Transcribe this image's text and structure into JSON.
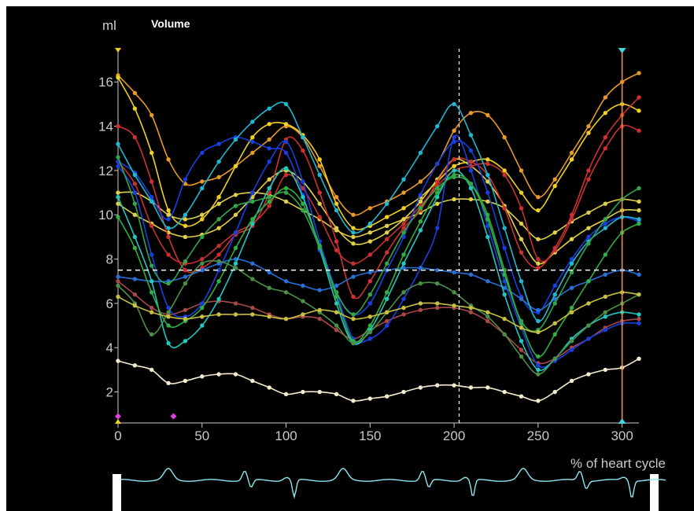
{
  "panel": {
    "unit_label": "ml",
    "title": "Volume",
    "x_axis_label": "% of heart cycle"
  },
  "colors": {
    "background": "#000000",
    "axis": "#cccccc",
    "crosshair": "#ffffff",
    "cursor_line": "#e8904a",
    "cursor_marker": "#40d8e8",
    "start_marker": "#f0d020",
    "event_marker": "#e040e0",
    "ecg": "#8ee6f2"
  },
  "chart_data": {
    "type": "line",
    "title": "Volume",
    "xlabel": "% of heart cycle",
    "ylabel": "ml",
    "xlim": [
      0,
      310
    ],
    "ylim": [
      0.6,
      17.5
    ],
    "x_ticks": [
      0,
      50,
      100,
      150,
      200,
      250,
      300
    ],
    "y_ticks": [
      2,
      4,
      6,
      8,
      10,
      12,
      14,
      16
    ],
    "grid": false,
    "crosshair": {
      "x": 203,
      "y": 7.5
    },
    "cursor_x": 300,
    "event_markers": [
      {
        "x": 0,
        "y": 0.9
      },
      {
        "x": 33,
        "y": 0.9
      }
    ],
    "series": [
      {
        "color": "#e89a28",
        "x": [
          0,
          10,
          20,
          30,
          40,
          50,
          60,
          70,
          80,
          90,
          100,
          110,
          120,
          130,
          140,
          150,
          160,
          170,
          180,
          190,
          200,
          210,
          220,
          230,
          240,
          250,
          260,
          270,
          280,
          290,
          300,
          310
        ],
        "values": [
          16.3,
          15.5,
          14.5,
          12.5,
          11.4,
          11.5,
          11.7,
          12.2,
          12.8,
          13.4,
          14.0,
          13.5,
          12.2,
          10.8,
          10.0,
          10.3,
          10.6,
          11.0,
          11.5,
          12.3,
          13.8,
          14.6,
          14.5,
          13.5,
          12.0,
          10.8,
          11.6,
          12.8,
          14.0,
          15.3,
          16.0,
          16.4
        ]
      },
      {
        "color": "#f0d020",
        "x": [
          0,
          10,
          20,
          30,
          40,
          50,
          60,
          70,
          80,
          90,
          100,
          110,
          120,
          130,
          140,
          150,
          160,
          170,
          180,
          190,
          200,
          210,
          220,
          230,
          240,
          250,
          260,
          270,
          280,
          290,
          300,
          310
        ],
        "values": [
          16.2,
          14.8,
          12.8,
          10.2,
          9.5,
          9.8,
          10.8,
          12.2,
          13.5,
          14.1,
          14.1,
          13.6,
          12.5,
          10.5,
          9.4,
          9.5,
          9.9,
          10.3,
          10.8,
          11.5,
          12.2,
          12.4,
          12.5,
          12.0,
          11.0,
          10.2,
          11.3,
          12.5,
          13.7,
          14.6,
          15.0,
          14.7
        ]
      },
      {
        "color": "#e0d048",
        "x": [
          0,
          10,
          20,
          30,
          40,
          50,
          60,
          70,
          80,
          90,
          100,
          110,
          120,
          130,
          140,
          150,
          160,
          170,
          180,
          190,
          200,
          210,
          220,
          230,
          240,
          250,
          260,
          270,
          280,
          290,
          300,
          310
        ],
        "values": [
          11.0,
          11.0,
          10.6,
          10.0,
          9.8,
          10.0,
          10.5,
          10.9,
          11.0,
          10.9,
          10.6,
          10.2,
          9.8,
          9.3,
          9.0,
          9.2,
          9.5,
          9.8,
          10.1,
          10.5,
          10.7,
          10.7,
          10.6,
          10.3,
          9.6,
          8.9,
          9.2,
          9.7,
          10.1,
          10.5,
          10.7,
          10.6
        ]
      },
      {
        "color": "#e0d048",
        "x": [
          0,
          10,
          20,
          30,
          40,
          50,
          60,
          70,
          80,
          90,
          100,
          110,
          120,
          130,
          140,
          150,
          160,
          170,
          180,
          190,
          200,
          210,
          220,
          230,
          240,
          250,
          260,
          270,
          280,
          290,
          300,
          310
        ],
        "values": [
          10.5,
          10.0,
          9.6,
          9.2,
          9.0,
          9.1,
          9.4,
          10.0,
          10.8,
          11.6,
          12.0,
          11.5,
          10.5,
          9.4,
          8.7,
          8.8,
          9.2,
          9.8,
          10.6,
          11.6,
          12.5,
          12.2,
          11.5,
          10.4,
          8.9,
          7.8,
          8.3,
          8.9,
          9.4,
          9.8,
          10.2,
          10.2
        ]
      },
      {
        "color": "#d03030",
        "x": [
          0,
          10,
          20,
          30,
          40,
          50,
          60,
          70,
          80,
          90,
          100,
          110,
          120,
          130,
          140,
          150,
          160,
          170,
          180,
          190,
          200,
          210,
          220,
          230,
          240,
          250,
          260,
          270,
          280,
          290,
          300,
          310
        ],
        "values": [
          14.0,
          13.5,
          11.5,
          9.0,
          7.5,
          7.6,
          8.2,
          9.1,
          9.5,
          11.0,
          13.4,
          12.9,
          11.0,
          8.8,
          6.3,
          7.0,
          8.3,
          9.4,
          10.2,
          11.5,
          12.5,
          12.4,
          11.8,
          10.3,
          8.3,
          7.6,
          8.5,
          10.0,
          12.0,
          13.5,
          14.5,
          15.3
        ]
      },
      {
        "color": "#c83030",
        "x": [
          0,
          10,
          20,
          30,
          40,
          50,
          60,
          70,
          80,
          90,
          100,
          110,
          120,
          130,
          140,
          150,
          160,
          170,
          180,
          190,
          200,
          210,
          220,
          230,
          240,
          250,
          260,
          270,
          280,
          290,
          300,
          310
        ],
        "values": [
          12.4,
          11.4,
          9.5,
          8.2,
          7.8,
          8.0,
          8.6,
          9.2,
          9.6,
          10.4,
          11.8,
          11.2,
          9.9,
          8.4,
          7.8,
          8.2,
          8.9,
          9.6,
          10.4,
          11.3,
          12.0,
          12.2,
          12.3,
          11.8,
          10.3,
          8.0,
          8.4,
          9.8,
          11.6,
          13.0,
          14.0,
          13.8
        ]
      },
      {
        "color": "#a84848",
        "x": [
          0,
          10,
          20,
          30,
          40,
          50,
          60,
          70,
          80,
          90,
          100,
          110,
          120,
          130,
          140,
          150,
          160,
          170,
          180,
          190,
          200,
          210,
          220,
          230,
          240,
          250,
          260,
          270,
          280,
          290,
          300,
          310
        ],
        "values": [
          7.0,
          6.4,
          5.8,
          5.5,
          5.7,
          6.0,
          6.1,
          6.0,
          5.8,
          5.5,
          5.3,
          5.4,
          5.3,
          4.8,
          4.4,
          4.8,
          5.2,
          5.5,
          5.7,
          5.8,
          5.8,
          5.6,
          5.2,
          4.6,
          3.9,
          3.3,
          3.5,
          4.0,
          4.4,
          4.9,
          5.2,
          5.3
        ]
      },
      {
        "color": "#1840e0",
        "x": [
          0,
          10,
          20,
          30,
          40,
          50,
          60,
          70,
          80,
          90,
          100,
          110,
          120,
          130,
          140,
          150,
          160,
          170,
          180,
          190,
          200,
          210,
          220,
          230,
          240,
          250,
          260,
          270,
          280,
          290,
          300,
          310
        ],
        "values": [
          12.4,
          11.9,
          10.8,
          9.8,
          11.6,
          12.8,
          13.2,
          13.5,
          13.3,
          13.0,
          12.8,
          10.9,
          8.4,
          6.5,
          5.5,
          6.0,
          7.5,
          9.0,
          10.9,
          12.3,
          13.3,
          12.9,
          11.0,
          8.5,
          6.3,
          5.6,
          6.8,
          8.0,
          9.0,
          9.6,
          9.9,
          9.7
        ]
      },
      {
        "color": "#1840e0",
        "x": [
          0,
          10,
          20,
          30,
          40,
          50,
          60,
          70,
          80,
          90,
          100,
          110,
          120,
          130,
          140,
          150,
          160,
          170,
          180,
          190,
          200,
          210,
          220,
          230,
          240,
          250,
          260,
          270,
          280,
          290,
          300,
          310
        ],
        "values": [
          12.2,
          11.0,
          8.2,
          5.8,
          5.4,
          6.0,
          7.5,
          9.2,
          11.0,
          12.4,
          13.3,
          11.5,
          8.8,
          6.5,
          4.4,
          4.4,
          5.0,
          6.2,
          7.6,
          9.4,
          13.5,
          12.0,
          9.5,
          7.0,
          4.9,
          3.2,
          3.4,
          3.9,
          4.4,
          4.8,
          5.1,
          5.1
        ]
      },
      {
        "color": "#2870d8",
        "x": [
          0,
          10,
          20,
          30,
          40,
          50,
          60,
          70,
          80,
          90,
          100,
          110,
          120,
          130,
          140,
          150,
          160,
          170,
          180,
          190,
          200,
          210,
          220,
          230,
          240,
          250,
          260,
          270,
          280,
          290,
          300,
          310
        ],
        "values": [
          7.2,
          7.1,
          7.0,
          7.0,
          7.2,
          7.5,
          7.8,
          8.0,
          7.8,
          7.4,
          7.0,
          6.8,
          6.6,
          6.8,
          7.2,
          7.4,
          7.5,
          7.6,
          7.6,
          7.5,
          7.4,
          7.3,
          7.0,
          6.7,
          6.2,
          5.7,
          6.2,
          6.7,
          7.0,
          7.3,
          7.5,
          7.3
        ]
      },
      {
        "color": "#20b8d0",
        "x": [
          0,
          10,
          20,
          30,
          40,
          50,
          60,
          70,
          80,
          90,
          100,
          110,
          120,
          130,
          140,
          150,
          160,
          170,
          180,
          190,
          200,
          210,
          220,
          230,
          240,
          250,
          260,
          270,
          280,
          290,
          300,
          310
        ],
        "values": [
          13.2,
          11.8,
          10.6,
          9.4,
          10.0,
          11.2,
          12.4,
          13.4,
          14.2,
          14.8,
          15.0,
          13.5,
          11.8,
          10.2,
          9.2,
          9.6,
          10.5,
          11.6,
          12.8,
          14.0,
          15.0,
          13.6,
          11.8,
          9.4,
          7.0,
          5.2,
          6.4,
          7.8,
          8.8,
          9.4,
          9.9,
          9.8
        ]
      },
      {
        "color": "#20c8c0",
        "x": [
          0,
          10,
          20,
          30,
          40,
          50,
          60,
          70,
          80,
          90,
          100,
          110,
          120,
          130,
          140,
          150,
          160,
          170,
          180,
          190,
          200,
          210,
          220,
          230,
          240,
          250,
          260,
          270,
          280,
          290,
          300,
          310
        ],
        "values": [
          10.8,
          9.0,
          7.0,
          4.2,
          4.3,
          5.0,
          6.2,
          7.8,
          9.6,
          11.2,
          12.1,
          10.8,
          8.5,
          6.0,
          4.2,
          4.8,
          6.2,
          7.8,
          9.3,
          10.8,
          12.0,
          11.2,
          9.0,
          6.4,
          4.3,
          3.0,
          3.5,
          4.4,
          5.0,
          5.4,
          5.6,
          5.5
        ]
      },
      {
        "color": "#30b040",
        "x": [
          0,
          10,
          20,
          30,
          40,
          50,
          60,
          70,
          80,
          90,
          100,
          110,
          120,
          130,
          140,
          150,
          160,
          170,
          180,
          190,
          200,
          210,
          220,
          230,
          240,
          250,
          260,
          270,
          280,
          290,
          300,
          310
        ],
        "values": [
          9.9,
          8.5,
          6.5,
          5.0,
          5.2,
          5.8,
          7.0,
          8.5,
          9.8,
          10.6,
          11.2,
          10.5,
          8.6,
          6.3,
          4.3,
          5.0,
          6.5,
          8.2,
          9.7,
          11.0,
          11.8,
          11.4,
          9.8,
          7.3,
          5.1,
          3.6,
          4.6,
          5.8,
          7.0,
          8.2,
          9.2,
          9.6
        ]
      },
      {
        "color": "#30a848",
        "x": [
          0,
          10,
          20,
          30,
          40,
          50,
          60,
          70,
          80,
          90,
          100,
          110,
          120,
          130,
          140,
          150,
          160,
          170,
          180,
          190,
          200,
          210,
          220,
          230,
          240,
          250,
          260,
          270,
          280,
          290,
          300,
          310
        ],
        "values": [
          12.6,
          10.5,
          7.7,
          6.9,
          7.9,
          9.0,
          9.8,
          10.4,
          10.6,
          10.8,
          11.0,
          10.2,
          8.5,
          6.5,
          5.5,
          6.4,
          7.8,
          9.2,
          10.3,
          11.2,
          11.7,
          11.4,
          10.0,
          7.5,
          5.2,
          4.8,
          6.0,
          7.4,
          8.7,
          9.8,
          10.7,
          11.2
        ]
      },
      {
        "color": "#4c9048",
        "x": [
          0,
          10,
          20,
          30,
          40,
          50,
          60,
          70,
          80,
          90,
          100,
          110,
          120,
          130,
          140,
          150,
          160,
          170,
          180,
          190,
          200,
          210,
          220,
          230,
          240,
          250,
          260,
          270,
          280,
          290,
          300,
          310
        ],
        "values": [
          6.8,
          6.0,
          4.6,
          5.6,
          6.9,
          7.8,
          7.9,
          7.6,
          7.1,
          6.7,
          6.5,
          6.1,
          5.6,
          5.0,
          4.2,
          4.7,
          5.6,
          6.5,
          6.9,
          6.9,
          6.5,
          5.9,
          5.4,
          4.6,
          3.6,
          2.8,
          3.5,
          4.3,
          5.0,
          5.6,
          6.0,
          6.4
        ]
      },
      {
        "color": "#c8c040",
        "x": [
          0,
          10,
          20,
          30,
          40,
          50,
          60,
          70,
          80,
          90,
          100,
          110,
          120,
          130,
          140,
          150,
          160,
          170,
          180,
          190,
          200,
          210,
          220,
          230,
          240,
          250,
          260,
          270,
          280,
          290,
          300,
          310
        ],
        "values": [
          6.3,
          5.9,
          5.6,
          5.4,
          5.3,
          5.4,
          5.5,
          5.5,
          5.5,
          5.4,
          5.3,
          5.5,
          5.7,
          5.6,
          5.3,
          5.4,
          5.6,
          5.8,
          6.0,
          6.0,
          5.9,
          5.8,
          5.6,
          5.3,
          4.9,
          4.7,
          5.1,
          5.6,
          6.0,
          6.3,
          6.5,
          6.4
        ]
      },
      {
        "color": "#f4ecd0",
        "x": [
          0,
          10,
          20,
          30,
          40,
          50,
          60,
          70,
          80,
          90,
          100,
          110,
          120,
          130,
          140,
          150,
          160,
          170,
          180,
          190,
          200,
          210,
          220,
          230,
          240,
          250,
          260,
          270,
          280,
          290,
          300,
          310
        ],
        "values": [
          3.4,
          3.2,
          3.0,
          2.4,
          2.5,
          2.7,
          2.8,
          2.8,
          2.5,
          2.2,
          1.9,
          2.0,
          2.0,
          1.9,
          1.6,
          1.7,
          1.8,
          2.0,
          2.2,
          2.3,
          2.3,
          2.2,
          2.2,
          2.0,
          1.8,
          1.6,
          2.0,
          2.5,
          2.8,
          3.0,
          3.1,
          3.5
        ]
      }
    ]
  }
}
